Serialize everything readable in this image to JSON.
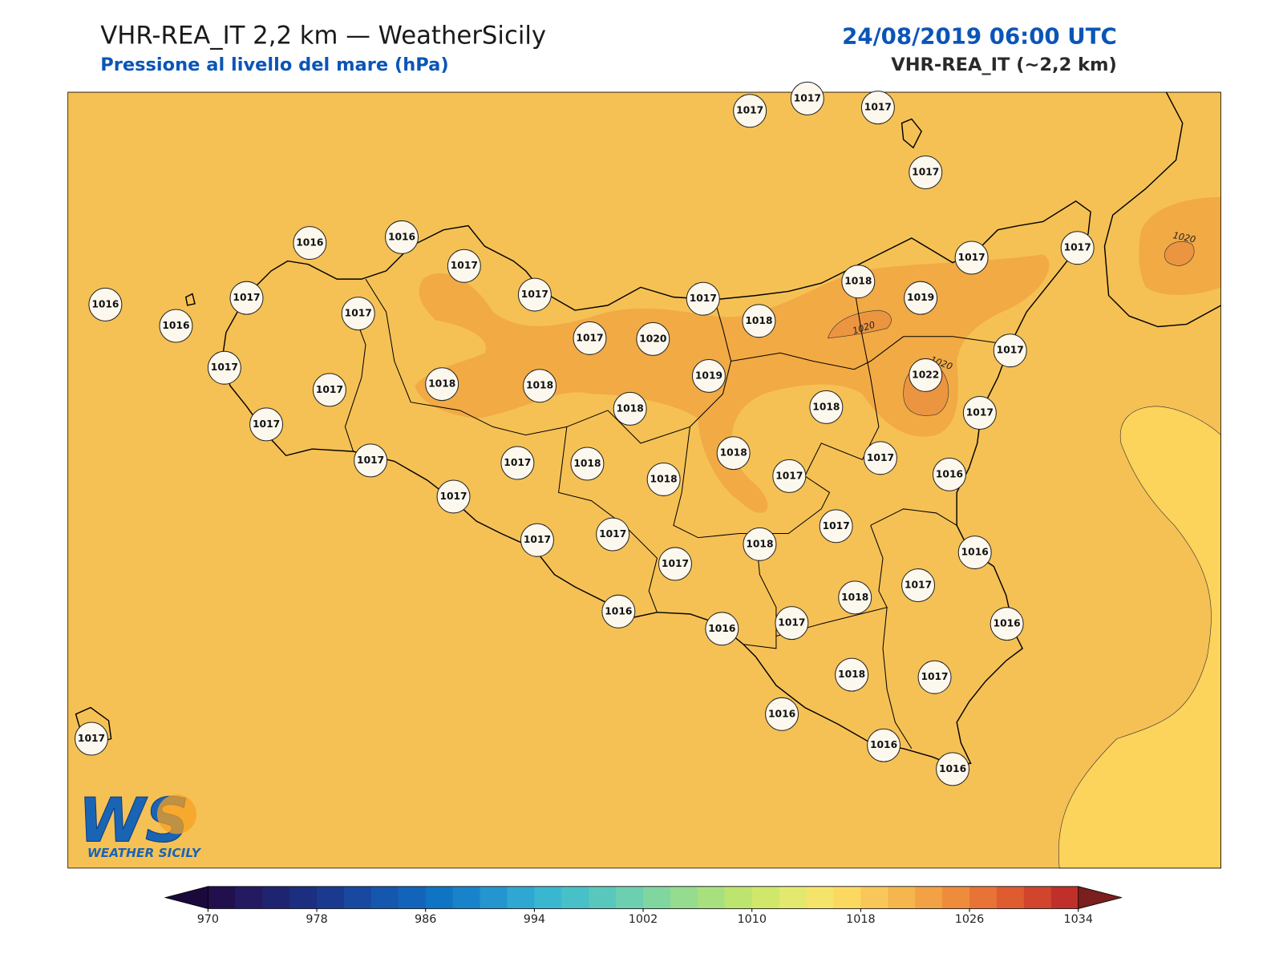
{
  "header": {
    "title": "VHR-REA_IT 2,2 km — WeatherSicily",
    "subtitle": "Pressione al livello del mare (hPa)",
    "datetime": "24/08/2019 06:00 UTC",
    "model": "VHR-REA_IT (~2,2 km)"
  },
  "stations": [
    1017,
    1017,
    1017,
    1017,
    1016,
    1016,
    1017,
    1017,
    1017,
    1018,
    1019,
    1017,
    1017,
    1016,
    1016,
    1017,
    1017,
    1017,
    1020,
    1018,
    1017,
    1017,
    1017,
    1018,
    1018,
    1018,
    1019,
    1022,
    1018,
    1017,
    1017,
    1017,
    1017,
    1018,
    1018,
    1018,
    1017,
    1017,
    1016,
    1017,
    1017,
    1017,
    1017,
    1018,
    1017,
    1016,
    1016,
    1016,
    1017,
    1018,
    1017,
    1016,
    1018,
    1017,
    1016,
    1016,
    1016,
    1017
  ],
  "contour_labels": [
    "1020",
    "1020",
    "1020"
  ],
  "logo": {
    "text": "WEATHER SICILY"
  },
  "colorbar": {
    "ticks": [
      970,
      978,
      986,
      994,
      1002,
      1010,
      1018,
      1026,
      1034
    ],
    "colors": [
      "#22104e",
      "#241a62",
      "#1f2470",
      "#1c2e80",
      "#1a3a90",
      "#1848a0",
      "#1556ae",
      "#1264bb",
      "#0f74c4",
      "#1883ca",
      "#2595cf",
      "#2fa7d3",
      "#3ab7d0",
      "#48c0c8",
      "#58c8bc",
      "#6ccfb0",
      "#80d69f",
      "#95dc8e",
      "#a8e07e",
      "#bde46e",
      "#d0e76a",
      "#e2e96e",
      "#f5e46a",
      "#fbd860",
      "#f9c65a",
      "#f5b64e",
      "#f2a145",
      "#ee8c3c",
      "#e77436",
      "#de5c30",
      "#d1442d",
      "#c0302a"
    ],
    "under_color": "#1a0a3c",
    "over_color": "#7a1e1e"
  }
}
